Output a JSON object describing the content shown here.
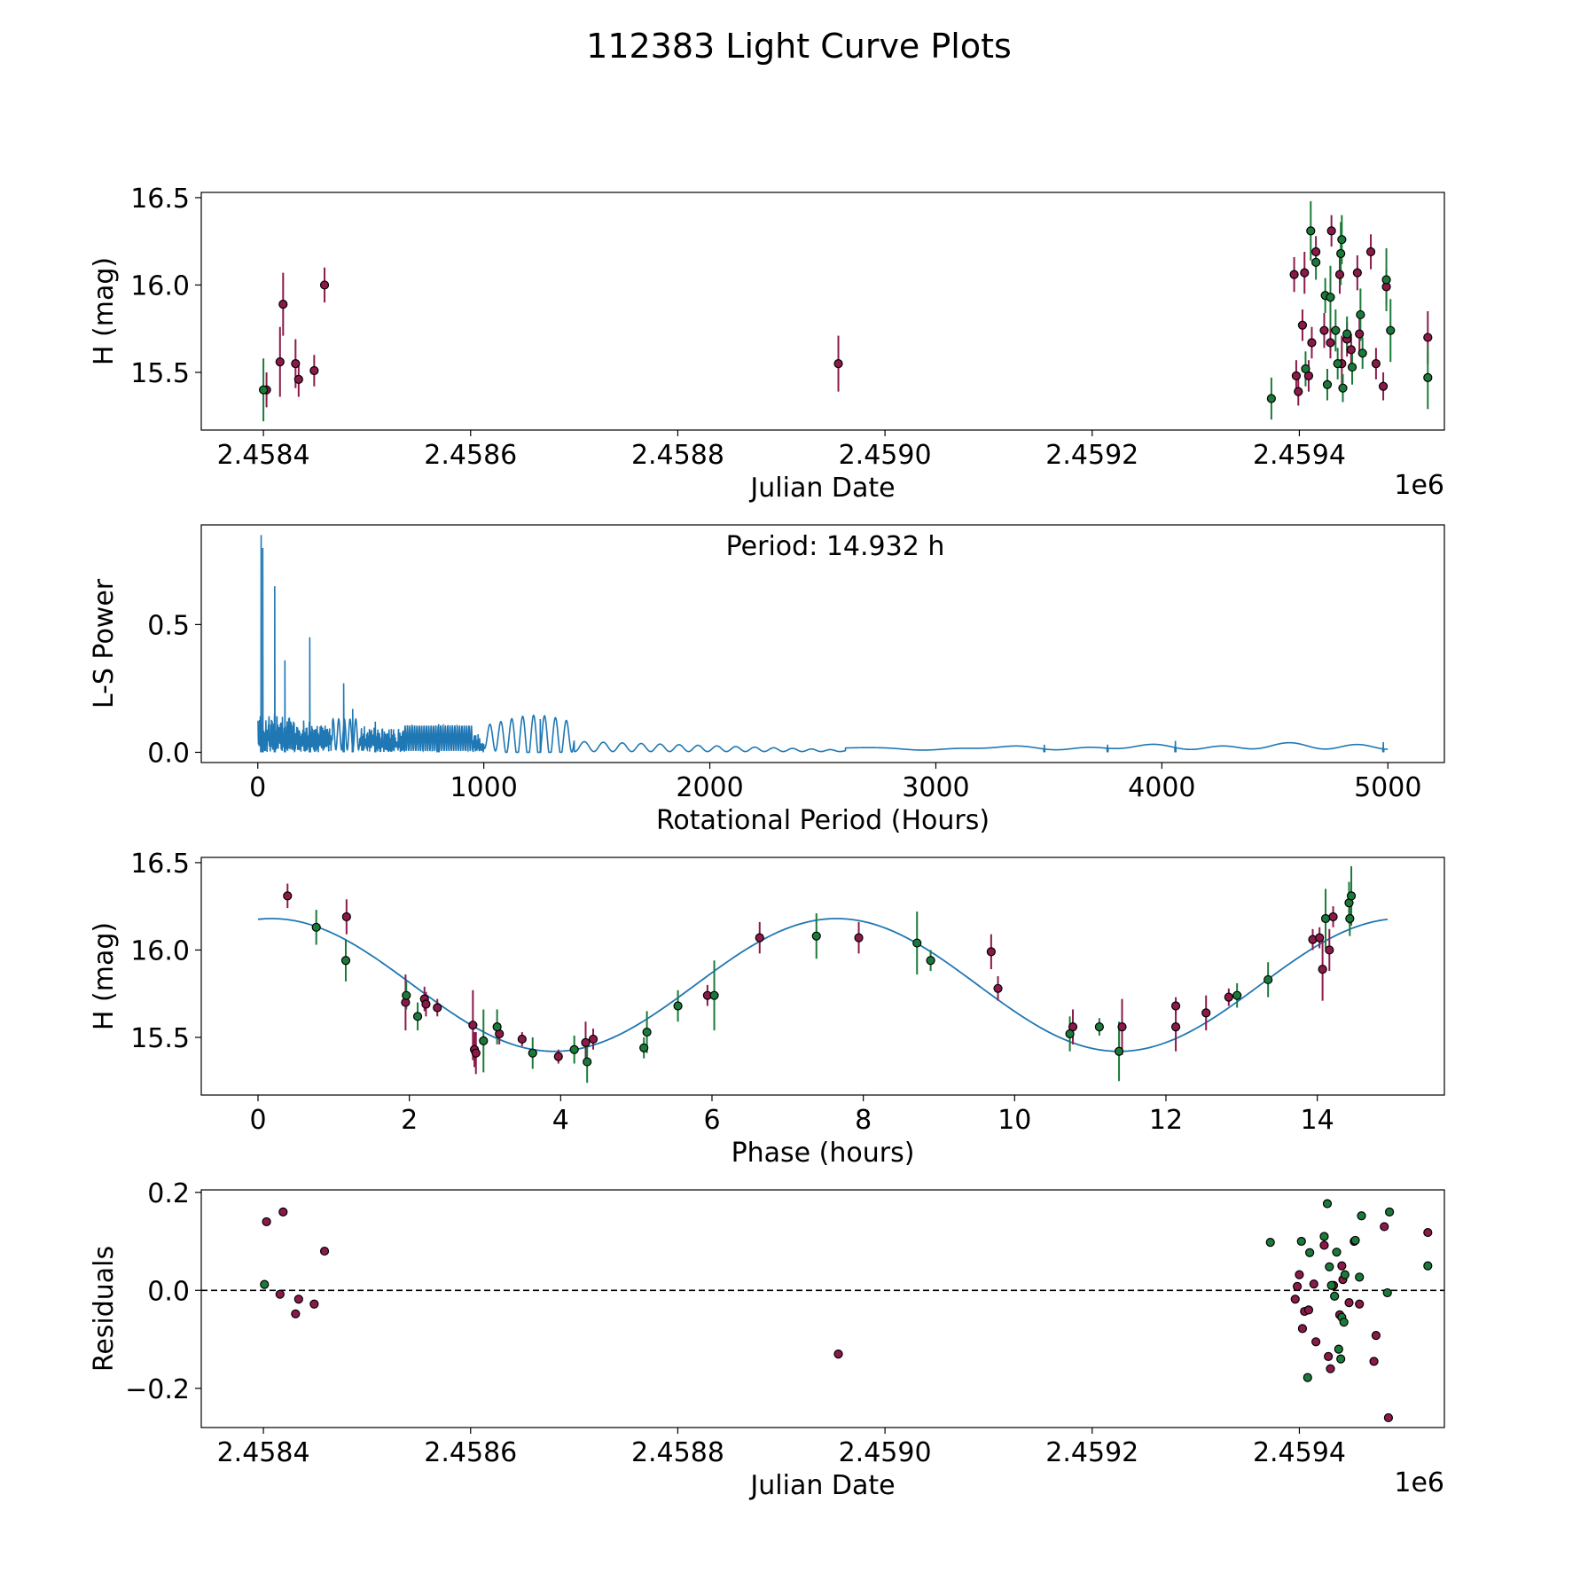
{
  "figure": {
    "title": "112383 Light Curve Plots"
  },
  "colors": {
    "red": "#8B1A4A",
    "green": "#1B7A3A",
    "curve": "#1f77b4",
    "edge": "#000000"
  },
  "chart_data": [
    {
      "id": "lightcurve",
      "type": "scatter",
      "title": "",
      "xlabel": "Julian Date",
      "ylabel": "H (mag)",
      "offset_label": "1e6",
      "xlim": [
        2458340,
        2459540
      ],
      "ylim": [
        15.17,
        16.53
      ],
      "xticks": [
        2458400,
        2458600,
        2458800,
        2459000,
        2459200,
        2459400
      ],
      "xtick_labels": [
        "2.4584",
        "2.4586",
        "2.4588",
        "2.4590",
        "2.4592",
        "2.4594"
      ],
      "yticks": [
        15.5,
        16.0,
        16.5
      ],
      "ytick_labels": [
        "15.5",
        "16.0",
        "16.5"
      ],
      "series": [
        {
          "name": "red",
          "color": "#8B1A4A",
          "points": [
            [
              2458403,
              15.4,
              0.1
            ],
            [
              2458416,
              15.56,
              0.2
            ],
            [
              2458419,
              15.89,
              0.18
            ],
            [
              2458431,
              15.55,
              0.14
            ],
            [
              2458434,
              15.46,
              0.1
            ],
            [
              2458449,
              15.51,
              0.09
            ],
            [
              2458459,
              16.0,
              0.1
            ],
            [
              2458955,
              15.55,
              0.16
            ],
            [
              2459395,
              16.06,
              0.1
            ],
            [
              2459397,
              15.48,
              0.09
            ],
            [
              2459399,
              15.39,
              0.08
            ],
            [
              2459403,
              15.77,
              0.09
            ],
            [
              2459405,
              16.07,
              0.12
            ],
            [
              2459409,
              15.48,
              0.09
            ],
            [
              2459412,
              15.67,
              0.09
            ],
            [
              2459416,
              16.19,
              0.09
            ],
            [
              2459424,
              15.74,
              0.1
            ],
            [
              2459430,
              15.67,
              0.09
            ],
            [
              2459431,
              16.31,
              0.09
            ],
            [
              2459439,
              16.06,
              0.11
            ],
            [
              2459441,
              15.55,
              0.16
            ],
            [
              2459446,
              15.69,
              0.1
            ],
            [
              2459450,
              15.63,
              0.09
            ],
            [
              2459456,
              16.07,
              0.1
            ],
            [
              2459458,
              15.72,
              0.1
            ],
            [
              2459469,
              16.19,
              0.1
            ],
            [
              2459474,
              15.55,
              0.09
            ],
            [
              2459481,
              15.42,
              0.08
            ],
            [
              2459484,
              15.99,
              0.1
            ],
            [
              2459524,
              15.7,
              0.15
            ]
          ]
        },
        {
          "name": "green",
          "color": "#1B7A3A",
          "points": [
            [
              2458400,
              15.4,
              0.18
            ],
            [
              2459373,
              15.35,
              0.12
            ],
            [
              2459406,
              15.52,
              0.1
            ],
            [
              2459411,
              16.31,
              0.17
            ],
            [
              2459416,
              16.13,
              0.1
            ],
            [
              2459425,
              15.94,
              0.1
            ],
            [
              2459427,
              15.43,
              0.09
            ],
            [
              2459430,
              15.93,
              0.18
            ],
            [
              2459435,
              15.74,
              0.12
            ],
            [
              2459437,
              15.55,
              0.09
            ],
            [
              2459440,
              16.18,
              0.18
            ],
            [
              2459441,
              16.26,
              0.14
            ],
            [
              2459442,
              15.41,
              0.08
            ],
            [
              2459446,
              15.72,
              0.1
            ],
            [
              2459451,
              15.53,
              0.1
            ],
            [
              2459459,
              15.83,
              0.15
            ],
            [
              2459461,
              15.61,
              0.09
            ],
            [
              2459484,
              16.03,
              0.18
            ],
            [
              2459488,
              15.74,
              0.18
            ],
            [
              2459524,
              15.47,
              0.18
            ]
          ]
        }
      ]
    },
    {
      "id": "periodogram",
      "type": "line",
      "title": "",
      "xlabel": "Rotational Period (Hours)",
      "ylabel": "L-S Power",
      "annotation": "Period: 14.932 h",
      "xlim": [
        -250,
        5250
      ],
      "ylim": [
        -0.04,
        0.89
      ],
      "xticks": [
        0,
        1000,
        2000,
        3000,
        4000,
        5000
      ],
      "xtick_labels": [
        "0",
        "1000",
        "2000",
        "3000",
        "4000",
        "5000"
      ],
      "yticks": [
        0.0,
        0.5
      ],
      "ytick_labels": [
        "0.0",
        "0.5"
      ],
      "period_range": [
        0,
        5000
      ],
      "peaks": [
        [
          14.9,
          0.85
        ],
        [
          22,
          0.8
        ],
        [
          75,
          0.65
        ],
        [
          120,
          0.36
        ],
        [
          230,
          0.45
        ],
        [
          380,
          0.27
        ],
        [
          420,
          0.17
        ],
        [
          520,
          0.12
        ],
        [
          800,
          0.11
        ],
        [
          1250,
          0.13
        ],
        [
          3480,
          0.03
        ],
        [
          3760,
          0.03
        ],
        [
          4060,
          0.045
        ],
        [
          4980,
          0.04
        ]
      ]
    },
    {
      "id": "phased",
      "type": "scatter",
      "title": "",
      "xlabel": "Phase (hours)",
      "ylabel": "H (mag)",
      "xlim": [
        -0.75,
        15.68
      ],
      "ylim": [
        15.17,
        16.53
      ],
      "xticks": [
        0,
        2,
        4,
        6,
        8,
        10,
        12,
        14
      ],
      "xtick_labels": [
        "0",
        "2",
        "4",
        "6",
        "8",
        "10",
        "12",
        "14"
      ],
      "yticks": [
        15.5,
        16.0,
        16.5
      ],
      "ytick_labels": [
        "15.5",
        "16.0",
        "16.5"
      ],
      "model": {
        "mean": 15.8,
        "amplitude": 0.38,
        "max_phase": 0.18,
        "period": 7.466,
        "x_range": [
          0,
          14.93
        ]
      },
      "series": [
        {
          "name": "red",
          "color": "#8B1A4A",
          "points": [
            [
              0.39,
              16.31,
              0.07
            ],
            [
              1.17,
              16.19,
              0.1
            ],
            [
              1.95,
              15.7,
              0.16
            ],
            [
              2.2,
              15.72,
              0.07
            ],
            [
              2.22,
              15.69,
              0.07
            ],
            [
              2.37,
              15.67,
              0.05
            ],
            [
              2.84,
              15.57,
              0.2
            ],
            [
              2.86,
              15.43,
              0.1
            ],
            [
              2.88,
              15.41,
              0.12
            ],
            [
              3.19,
              15.52,
              0.06
            ],
            [
              3.49,
              15.49,
              0.04
            ],
            [
              3.97,
              15.39,
              0.04
            ],
            [
              4.33,
              15.47,
              0.12
            ],
            [
              4.43,
              15.49,
              0.06
            ],
            [
              5.94,
              15.74,
              0.06
            ],
            [
              6.63,
              16.07,
              0.09
            ],
            [
              7.94,
              16.07,
              0.09
            ],
            [
              9.69,
              15.99,
              0.1
            ],
            [
              9.78,
              15.78,
              0.07
            ],
            [
              10.77,
              15.56,
              0.1
            ],
            [
              11.42,
              15.56,
              0.16
            ],
            [
              12.13,
              15.68,
              0.05
            ],
            [
              12.13,
              15.56,
              0.14
            ],
            [
              12.53,
              15.64,
              0.1
            ],
            [
              12.83,
              15.73,
              0.05
            ],
            [
              13.94,
              16.06,
              0.06
            ],
            [
              14.03,
              16.07,
              0.06
            ],
            [
              14.07,
              15.89,
              0.18
            ],
            [
              14.16,
              16.0,
              0.12
            ],
            [
              14.21,
              16.19,
              0.06
            ]
          ]
        },
        {
          "name": "green",
          "color": "#1B7A3A",
          "points": [
            [
              0.77,
              16.13,
              0.1
            ],
            [
              1.16,
              15.94,
              0.12
            ],
            [
              1.96,
              15.74,
              0.08
            ],
            [
              2.11,
              15.62,
              0.08
            ],
            [
              2.98,
              15.48,
              0.18
            ],
            [
              3.16,
              15.56,
              0.1
            ],
            [
              3.63,
              15.41,
              0.09
            ],
            [
              4.18,
              15.43,
              0.08
            ],
            [
              4.35,
              15.36,
              0.12
            ],
            [
              5.1,
              15.44,
              0.06
            ],
            [
              5.14,
              15.53,
              0.12
            ],
            [
              5.55,
              15.68,
              0.09
            ],
            [
              6.03,
              15.74,
              0.2
            ],
            [
              7.38,
              16.08,
              0.13
            ],
            [
              8.71,
              16.04,
              0.18
            ],
            [
              8.89,
              15.94,
              0.06
            ],
            [
              10.73,
              15.52,
              0.1
            ],
            [
              11.12,
              15.56,
              0.05
            ],
            [
              11.38,
              15.42,
              0.17
            ],
            [
              12.94,
              15.74,
              0.07
            ],
            [
              13.35,
              15.83,
              0.1
            ],
            [
              14.11,
              16.18,
              0.17
            ],
            [
              14.42,
              16.27,
              0.12
            ],
            [
              14.43,
              16.18,
              0.1
            ],
            [
              14.45,
              16.31,
              0.17
            ]
          ]
        }
      ]
    },
    {
      "id": "residuals",
      "type": "scatter",
      "title": "",
      "xlabel": "Julian Date",
      "ylabel": "Residuals",
      "offset_label": "1e6",
      "xlim": [
        2458340,
        2459540
      ],
      "ylim": [
        -0.28,
        0.205
      ],
      "xticks": [
        2458400,
        2458600,
        2458800,
        2459000,
        2459200,
        2459400
      ],
      "xtick_labels": [
        "2.4584",
        "2.4586",
        "2.4588",
        "2.4590",
        "2.4592",
        "2.4594"
      ],
      "yticks": [
        -0.2,
        0.0,
        0.2
      ],
      "ytick_labels": [
        "−0.2",
        "0.0",
        "0.2"
      ],
      "reference_line": 0.0,
      "series": [
        {
          "name": "red",
          "color": "#8B1A4A",
          "points": [
            [
              2458403,
              0.14
            ],
            [
              2458416,
              -0.008
            ],
            [
              2458419,
              0.16
            ],
            [
              2458431,
              -0.048
            ],
            [
              2458434,
              -0.018
            ],
            [
              2458449,
              -0.028
            ],
            [
              2458459,
              0.08
            ],
            [
              2458955,
              -0.13
            ],
            [
              2459396,
              -0.018
            ],
            [
              2459398,
              0.008
            ],
            [
              2459400,
              0.032
            ],
            [
              2459403,
              -0.078
            ],
            [
              2459405,
              -0.043
            ],
            [
              2459409,
              -0.04
            ],
            [
              2459414,
              0.013
            ],
            [
              2459416,
              -0.105
            ],
            [
              2459424,
              0.092
            ],
            [
              2459428,
              -0.135
            ],
            [
              2459430,
              -0.16
            ],
            [
              2459433,
              0.01
            ],
            [
              2459439,
              -0.05
            ],
            [
              2459441,
              0.05
            ],
            [
              2459442,
              0.022
            ],
            [
              2459448,
              -0.025
            ],
            [
              2459453,
              0.1
            ],
            [
              2459458,
              -0.028
            ],
            [
              2459472,
              -0.145
            ],
            [
              2459474,
              -0.092
            ],
            [
              2459482,
              0.13
            ],
            [
              2459486,
              -0.26
            ],
            [
              2459524,
              0.118
            ]
          ]
        },
        {
          "name": "green",
          "color": "#1B7A3A",
          "points": [
            [
              2458401,
              0.012
            ],
            [
              2459372,
              0.098
            ],
            [
              2459402,
              0.1
            ],
            [
              2459408,
              -0.178
            ],
            [
              2459410,
              0.077
            ],
            [
              2459424,
              0.11
            ],
            [
              2459427,
              0.177
            ],
            [
              2459429,
              0.048
            ],
            [
              2459431,
              0.01
            ],
            [
              2459434,
              -0.012
            ],
            [
              2459436,
              0.078
            ],
            [
              2459438,
              -0.12
            ],
            [
              2459440,
              -0.14
            ],
            [
              2459441,
              -0.055
            ],
            [
              2459443,
              -0.065
            ],
            [
              2459444,
              0.032
            ],
            [
              2459454,
              0.102
            ],
            [
              2459458,
              0.027
            ],
            [
              2459460,
              0.152
            ],
            [
              2459485,
              -0.005
            ],
            [
              2459487,
              0.16
            ],
            [
              2459524,
              0.05
            ]
          ]
        }
      ]
    }
  ]
}
